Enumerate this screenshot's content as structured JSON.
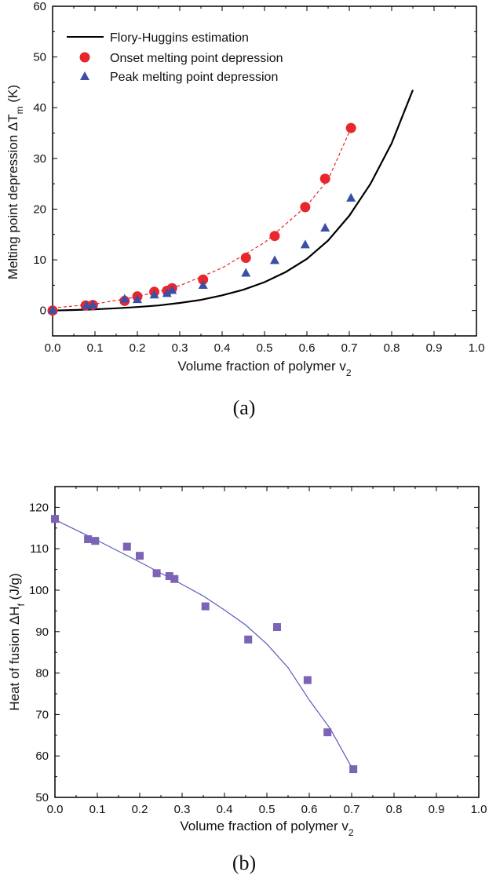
{
  "chart_data": [
    {
      "panel_label": "(a)",
      "type": "scatter",
      "xlabel": "Volume fraction of polymer v",
      "xlabel_sub": "2",
      "ylabel": "Melting point depression ΔT",
      "ylabel_sub": "m",
      "ylabel_unit": " (K)",
      "xlim": [
        0,
        1.0
      ],
      "ylim": [
        -5,
        60
      ],
      "xticks": [
        "0.0",
        "0.1",
        "0.2",
        "0.3",
        "0.4",
        "0.5",
        "0.6",
        "0.7",
        "0.8",
        "0.9",
        "1.0"
      ],
      "yticks": [
        "0",
        "10",
        "20",
        "30",
        "40",
        "50",
        "60"
      ],
      "legend_position": "top-left",
      "series": [
        {
          "name": "Flory-Huggins estimation",
          "kind": "line",
          "color": "#000000",
          "x": [
            0,
            0.05,
            0.1,
            0.15,
            0.2,
            0.25,
            0.3,
            0.35,
            0.4,
            0.45,
            0.5,
            0.55,
            0.6,
            0.65,
            0.7,
            0.75,
            0.8,
            0.85
          ],
          "y": [
            0,
            0.1,
            0.25,
            0.45,
            0.7,
            1.0,
            1.5,
            2.1,
            3.0,
            4.1,
            5.6,
            7.6,
            10.2,
            13.8,
            18.7,
            25.0,
            33.0,
            43.5
          ]
        },
        {
          "name": "Onset melting point depression",
          "kind": "marker",
          "marker": "circle",
          "color": "#e8262b",
          "x": [
            0,
            0.078,
            0.095,
            0.17,
            0.2,
            0.24,
            0.27,
            0.282,
            0.355,
            0.456,
            0.524,
            0.596,
            0.643,
            0.704
          ],
          "y": [
            0,
            1.0,
            1.1,
            1.9,
            2.8,
            3.7,
            3.9,
            4.4,
            6.1,
            10.4,
            14.7,
            20.4,
            26.0,
            36.0
          ]
        },
        {
          "name": "Peak melting point depression",
          "kind": "marker",
          "marker": "triangle",
          "color": "#3b4fa6",
          "x": [
            0,
            0.08,
            0.095,
            0.17,
            0.2,
            0.24,
            0.27,
            0.282,
            0.355,
            0.456,
            0.524,
            0.596,
            0.643,
            0.704
          ],
          "y": [
            0,
            0.9,
            1.0,
            2.2,
            2.1,
            3.0,
            3.3,
            3.9,
            4.9,
            7.3,
            9.8,
            12.9,
            16.2,
            22.1
          ]
        },
        {
          "kind": "fit-line",
          "style": "dashed",
          "color": "#e8262b",
          "x": [
            0,
            0.1,
            0.2,
            0.3,
            0.4,
            0.5,
            0.6,
            0.65,
            0.704
          ],
          "y": [
            0.5,
            1.3,
            2.7,
            4.9,
            8.4,
            13.4,
            20.7,
            25.8,
            36.0
          ]
        }
      ]
    },
    {
      "panel_label": "(b)",
      "type": "scatter",
      "xlabel": "Volume fraction of polymer v",
      "xlabel_sub": "2",
      "ylabel": "Heat of fusion ΔH",
      "ylabel_sub": "f",
      "ylabel_unit": " (J/g)",
      "xlim": [
        0,
        1.0
      ],
      "ylim": [
        50,
        125
      ],
      "xticks": [
        "0.0",
        "0.1",
        "0.2",
        "0.3",
        "0.4",
        "0.5",
        "0.6",
        "0.7",
        "0.8",
        "0.9",
        "1.0"
      ],
      "yticks": [
        "50",
        "60",
        "70",
        "80",
        "90",
        "100",
        "110",
        "120"
      ],
      "series": [
        {
          "kind": "marker",
          "marker": "square",
          "color": "#7b63b5",
          "x": [
            0,
            0.078,
            0.095,
            0.17,
            0.2,
            0.24,
            0.27,
            0.282,
            0.355,
            0.456,
            0.524,
            0.596,
            0.643,
            0.704
          ],
          "y": [
            117.2,
            112.3,
            111.9,
            110.5,
            108.3,
            104.1,
            103.4,
            102.7,
            96.1,
            88.1,
            91.1,
            78.3,
            65.7,
            56.8
          ]
        },
        {
          "kind": "fit-line",
          "color": "#5a5bb8",
          "x": [
            0,
            0.1,
            0.2,
            0.3,
            0.35,
            0.4,
            0.45,
            0.5,
            0.55,
            0.6,
            0.65,
            0.704
          ],
          "y": [
            117.0,
            112.0,
            106.8,
            101.4,
            98.6,
            95.2,
            91.6,
            87.0,
            81.3,
            73.5,
            66.5,
            56.5
          ]
        }
      ]
    }
  ]
}
